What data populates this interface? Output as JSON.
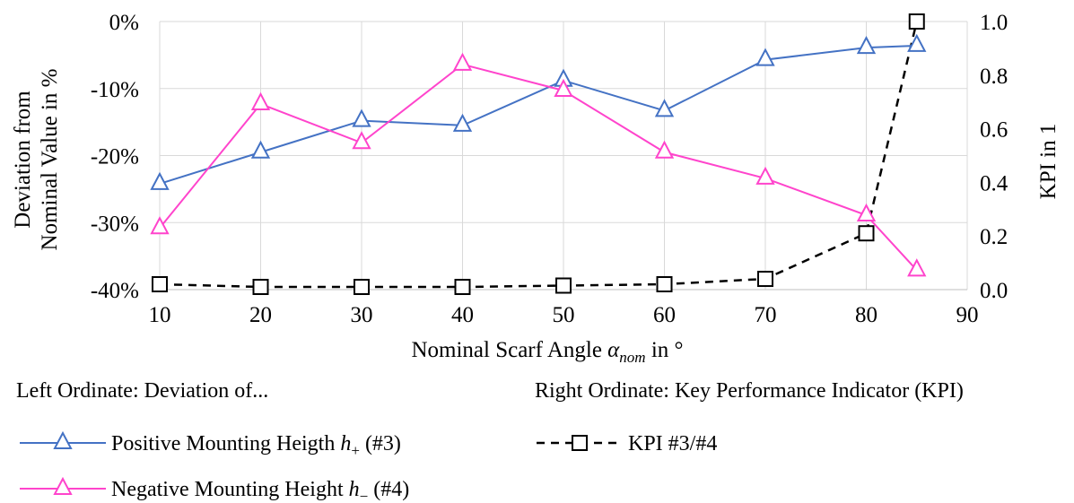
{
  "chart_data": {
    "type": "line",
    "x": [
      10,
      20,
      30,
      40,
      50,
      60,
      70,
      80,
      85
    ],
    "xlabel": {
      "prefix": "Nominal Scarf Angle ",
      "symbol": "α",
      "subscript": "nom",
      "suffix": " in °"
    },
    "xlim": [
      10,
      90
    ],
    "x_ticks": [
      "10",
      "20",
      "30",
      "40",
      "50",
      "60",
      "70",
      "80",
      "90"
    ],
    "ylabel_left": [
      "Deviation from",
      "Nominal Value in %"
    ],
    "ylim_left": [
      -40,
      0
    ],
    "y_left_ticks": [
      "0%",
      "-10%",
      "-20%",
      "-30%",
      "-40%"
    ],
    "ylabel_right": "KPI in 1",
    "ylim_right": [
      0,
      1
    ],
    "y_right_ticks": [
      "1.0",
      "0.8",
      "0.6",
      "0.4",
      "0.2",
      "0.0"
    ],
    "grid": true,
    "series": [
      {
        "name": "Positive Mounting Heigth h+ (#3)",
        "axis": "left",
        "marker": "triangle",
        "color": "#4472C4",
        "values": [
          -24.2,
          -19.5,
          -14.8,
          -15.5,
          -8.8,
          -13.3,
          -5.7,
          -3.9,
          -3.6
        ]
      },
      {
        "name": "Negative Mounting Height h− (#4)",
        "axis": "left",
        "marker": "triangle",
        "color": "#FF44CC",
        "values": [
          -30.8,
          -12.3,
          -18.1,
          -6.4,
          -10.3,
          -19.5,
          -23.4,
          -28.9,
          -37.1
        ]
      },
      {
        "name": "KPI #3/#4",
        "axis": "right",
        "marker": "square",
        "color": "#000000",
        "dashed": true,
        "values": [
          0.02,
          0.01,
          0.01,
          0.01,
          0.015,
          0.02,
          0.04,
          0.21,
          1.0
        ]
      }
    ]
  },
  "legend": {
    "left_heading": "Left Ordinate: Deviation of...",
    "right_heading": "Right Ordinate: Key Performance Indicator (KPI)",
    "items": [
      {
        "prefix": "Positive Mounting Heigth ",
        "symbol": "h",
        "subscript": "+",
        "suffix": " (#3)"
      },
      {
        "prefix": "Negative Mounting Height ",
        "symbol": "h",
        "subscript": "−",
        "suffix": " (#4)"
      },
      {
        "prefix": "KPI #3/#4",
        "symbol": "",
        "subscript": "",
        "suffix": ""
      }
    ]
  }
}
